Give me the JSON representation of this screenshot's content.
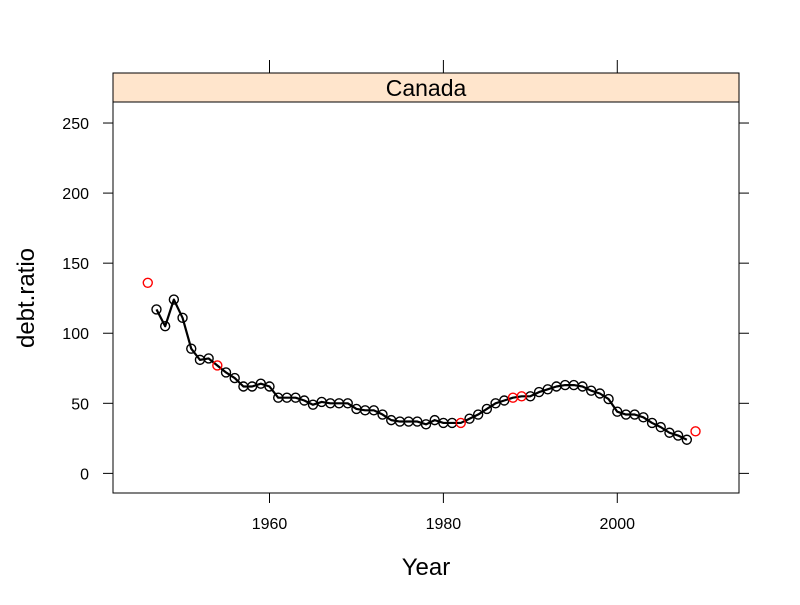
{
  "chart_data": {
    "type": "scatter",
    "panel_title": "Canada",
    "xlabel": "Year",
    "ylabel": "debt.ratio",
    "xlim": [
      1942,
      2014
    ],
    "ylim": [
      -14,
      265
    ],
    "x_ticks": [
      1960,
      1980,
      2000
    ],
    "x_tick_labels": [
      "1960",
      "1980",
      "2000"
    ],
    "y_ticks": [
      0,
      50,
      100,
      150,
      200,
      250
    ],
    "y_tick_labels": [
      "0",
      "50",
      "100",
      "150",
      "200",
      "250"
    ],
    "grid": false,
    "colors": {
      "observed": "#000000",
      "highlighted": "#ff0000",
      "strip": "#ffe5cc",
      "line": "#000000"
    },
    "series": [
      {
        "type": "line",
        "x": [
          1947,
          1948,
          1949,
          1950,
          1951,
          1952,
          1953,
          1954,
          1955,
          1956,
          1957,
          1958,
          1959,
          1960,
          1961,
          1962,
          1963,
          1964,
          1965,
          1966,
          1967,
          1968,
          1969,
          1970,
          1971,
          1972,
          1973,
          1974,
          1975,
          1976,
          1977,
          1978,
          1979,
          1980,
          1981,
          1982,
          1983,
          1984,
          1985,
          1986,
          1987,
          1988,
          1989,
          1990,
          1991,
          1992,
          1993,
          1994,
          1995,
          1996,
          1997,
          1998,
          1999,
          2000,
          2001,
          2002,
          2003,
          2004,
          2005,
          2006,
          2007,
          2008
        ],
        "y": [
          117,
          105,
          124,
          111,
          89,
          81,
          82,
          77,
          72,
          68,
          62,
          62,
          64,
          62,
          54,
          54,
          54,
          52,
          49,
          51,
          50,
          50,
          50,
          46,
          45,
          45,
          42,
          38,
          37,
          37,
          37,
          35,
          38,
          36,
          36,
          36,
          39,
          42,
          46,
          50,
          52,
          54,
          55,
          55,
          58,
          60,
          62,
          63,
          63,
          62,
          59,
          57,
          53,
          44,
          42,
          42,
          40,
          36,
          33,
          29,
          27,
          24
        ]
      },
      {
        "type": "points",
        "x": [
          1947,
          1948,
          1949,
          1950,
          1951,
          1952,
          1953,
          1955,
          1956,
          1957,
          1958,
          1959,
          1960,
          1961,
          1962,
          1963,
          1964,
          1965,
          1966,
          1967,
          1968,
          1969,
          1970,
          1971,
          1972,
          1973,
          1974,
          1975,
          1976,
          1977,
          1978,
          1979,
          1980,
          1981,
          1983,
          1984,
          1985,
          1986,
          1987,
          1990,
          1991,
          1992,
          1993,
          1994,
          1995,
          1996,
          1997,
          1998,
          1999,
          2000,
          2001,
          2002,
          2003,
          2004,
          2005,
          2006,
          2007,
          2008
        ],
        "y": [
          117,
          105,
          124,
          111,
          89,
          81,
          82,
          72,
          68,
          62,
          62,
          64,
          62,
          54,
          54,
          54,
          52,
          49,
          51,
          50,
          50,
          50,
          46,
          45,
          45,
          42,
          38,
          37,
          37,
          37,
          35,
          38,
          36,
          36,
          39,
          42,
          46,
          50,
          52,
          55,
          58,
          60,
          62,
          63,
          63,
          62,
          59,
          57,
          53,
          44,
          42,
          42,
          40,
          36,
          33,
          29,
          27,
          24
        ]
      },
      {
        "type": "points",
        "x": [
          1946,
          1954,
          1982,
          1988,
          1989,
          2009
        ],
        "y": [
          136,
          77,
          36,
          54,
          55,
          30
        ]
      }
    ]
  }
}
